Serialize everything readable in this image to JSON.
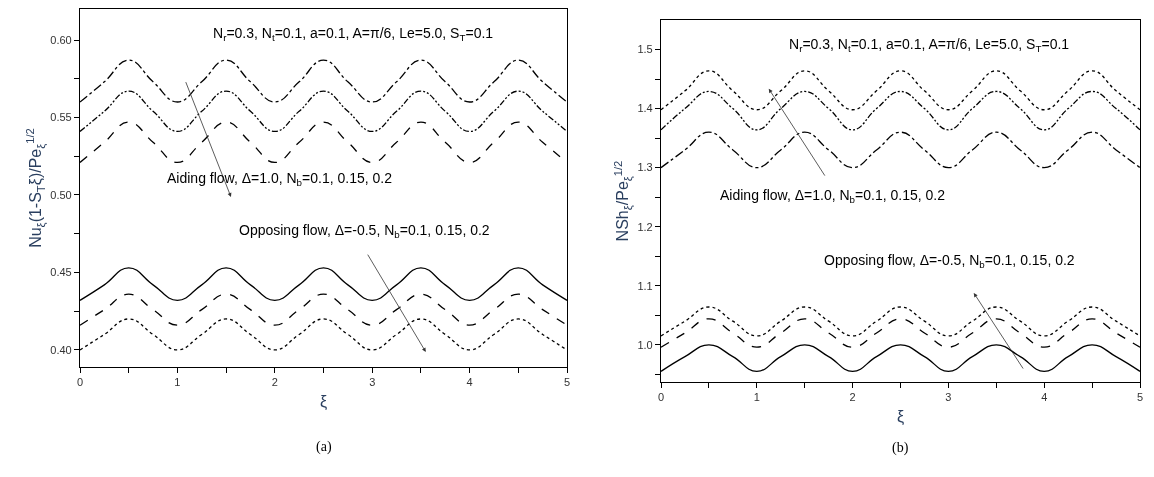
{
  "chart_data": [
    {
      "type": "line",
      "xlabel": "ξ",
      "ylabel": "Nu$_{ξ}$(1-S$_{T}$ξ)/Pe$_{ξ}$$^{1/2}$",
      "x": [
        0,
        0.25,
        0.5,
        0.75,
        1,
        1.25,
        1.5,
        1.75,
        2,
        2.25,
        2.5,
        2.75,
        3,
        3.25,
        3.5,
        3.75,
        4,
        4.25,
        4.5,
        4.75,
        5
      ],
      "xlim": [
        0,
        5
      ],
      "xticks": [
        0,
        {
          "value": 0.5,
          "label": null
        },
        1,
        {
          "value": 1.5,
          "label": null
        },
        2,
        {
          "value": 2.5,
          "label": null
        },
        3,
        {
          "value": 3.5,
          "label": null
        },
        4,
        {
          "value": 4.5,
          "label": null
        },
        5
      ],
      "ylim": [
        0.389,
        0.62
      ],
      "yticks": [
        {
          "value": 0.4,
          "label": "0.40"
        },
        {
          "value": 0.425,
          "label": null
        },
        0.45,
        {
          "value": 0.475,
          "label": null
        },
        {
          "value": 0.5,
          "label": "0.50"
        },
        {
          "value": 0.525,
          "label": null
        },
        0.55,
        {
          "value": 0.575,
          "label": null
        },
        {
          "value": 0.6,
          "label": "0.60"
        }
      ],
      "series": [
        {
          "color": "#000000",
          "line_style": "dashdot",
          "values": [
            0.56,
            0.573,
            0.587,
            0.573,
            0.56,
            0.573,
            0.587,
            0.573,
            0.56,
            0.573,
            0.587,
            0.573,
            0.56,
            0.573,
            0.587,
            0.573,
            0.56,
            0.573,
            0.587,
            0.573,
            0.56
          ]
        },
        {
          "color": "#000000",
          "line_style": "dashdotdot",
          "values": [
            0.541,
            0.554,
            0.567,
            0.554,
            0.541,
            0.554,
            0.567,
            0.554,
            0.541,
            0.554,
            0.567,
            0.554,
            0.541,
            0.554,
            0.567,
            0.554,
            0.541,
            0.554,
            0.567,
            0.554,
            0.541
          ]
        },
        {
          "color": "#000000",
          "line_style": "dashed",
          "values": [
            0.521,
            0.534,
            0.547,
            0.534,
            0.521,
            0.534,
            0.547,
            0.534,
            0.521,
            0.534,
            0.547,
            0.534,
            0.521,
            0.534,
            0.547,
            0.534,
            0.521,
            0.534,
            0.547,
            0.534,
            0.521
          ]
        },
        {
          "color": "#000000",
          "line_style": "solid",
          "values": [
            0.432,
            0.442,
            0.453,
            0.442,
            0.432,
            0.442,
            0.453,
            0.442,
            0.432,
            0.442,
            0.453,
            0.442,
            0.432,
            0.442,
            0.453,
            0.442,
            0.432,
            0.442,
            0.453,
            0.442,
            0.432
          ]
        },
        {
          "color": "#000000",
          "line_style": "dashed",
          "values": [
            0.416,
            0.426,
            0.436,
            0.426,
            0.416,
            0.426,
            0.436,
            0.426,
            0.416,
            0.426,
            0.436,
            0.426,
            0.416,
            0.426,
            0.436,
            0.426,
            0.416,
            0.426,
            0.436,
            0.426,
            0.416
          ]
        },
        {
          "color": "#000000",
          "line_style": "dotted",
          "values": [
            0.4,
            0.41,
            0.42,
            0.41,
            0.4,
            0.41,
            0.42,
            0.41,
            0.4,
            0.41,
            0.42,
            0.41,
            0.4,
            0.41,
            0.42,
            0.41,
            0.4,
            0.41,
            0.42,
            0.41,
            0.4
          ]
        }
      ],
      "annotations": [
        "N$_{r}$=0.3, N$_{t}$=0.1, a=0.1, A=π/6, Le=5.0, S$_{T}$=0.1",
        "Aiding flow, Δ=1.0, N$_{b}$=0.1, 0.15, 0.2",
        "Opposing flow, Δ=-0.5, N$_{b}$=0.1, 0.15, 0.2",
        "(a)"
      ]
    },
    {
      "type": "line",
      "xlabel": "ξ",
      "ylabel": "NSh$_{ξ}$/Pe$_{ξ}$$^{1/2}$",
      "x": [
        0,
        0.25,
        0.5,
        0.75,
        1,
        1.25,
        1.5,
        1.75,
        2,
        2.25,
        2.5,
        2.75,
        3,
        3.25,
        3.5,
        3.75,
        4,
        4.25,
        4.5,
        4.75,
        5
      ],
      "xlim": [
        0,
        5
      ],
      "xticks": [
        0,
        {
          "value": 0.5,
          "label": null
        },
        1,
        {
          "value": 1.5,
          "label": null
        },
        2,
        {
          "value": 2.5,
          "label": null
        },
        3,
        {
          "value": 3.5,
          "label": null
        },
        4,
        {
          "value": 4.5,
          "label": null
        },
        5
      ],
      "ylim": [
        0.937,
        1.55
      ],
      "yticks": [
        {
          "value": 0.95,
          "label": null
        },
        {
          "value": 1,
          "label": "1.0"
        },
        {
          "value": 1.05,
          "label": null
        },
        1.1,
        {
          "value": 1.15,
          "label": null
        },
        1.2,
        {
          "value": 1.25,
          "label": null
        },
        1.3,
        {
          "value": 1.35,
          "label": null
        },
        1.4,
        {
          "value": 1.45,
          "label": null
        },
        1.5
      ],
      "series": [
        {
          "color": "#000000",
          "line_style": "dotted",
          "values": [
            1.398,
            1.43,
            1.464,
            1.43,
            1.398,
            1.43,
            1.464,
            1.43,
            1.398,
            1.43,
            1.464,
            1.43,
            1.398,
            1.43,
            1.464,
            1.43,
            1.398,
            1.43,
            1.464,
            1.43,
            1.398
          ]
        },
        {
          "color": "#000000",
          "line_style": "dashdotdot",
          "values": [
            1.364,
            1.4,
            1.429,
            1.4,
            1.364,
            1.4,
            1.429,
            1.4,
            1.364,
            1.4,
            1.429,
            1.4,
            1.364,
            1.4,
            1.429,
            1.4,
            1.364,
            1.4,
            1.429,
            1.4,
            1.364
          ]
        },
        {
          "color": "#000000",
          "line_style": "dashdot",
          "values": [
            1.3,
            1.33,
            1.36,
            1.33,
            1.3,
            1.33,
            1.36,
            1.33,
            1.3,
            1.33,
            1.36,
            1.33,
            1.3,
            1.33,
            1.36,
            1.33,
            1.3,
            1.33,
            1.36,
            1.33,
            1.3
          ]
        },
        {
          "color": "#000000",
          "line_style": "dotted",
          "values": [
            1.015,
            1.04,
            1.064,
            1.04,
            1.015,
            1.04,
            1.064,
            1.04,
            1.015,
            1.04,
            1.064,
            1.04,
            1.015,
            1.04,
            1.064,
            1.04,
            1.015,
            1.04,
            1.064,
            1.04,
            1.015
          ]
        },
        {
          "color": "#000000",
          "line_style": "dashed",
          "values": [
            0.996,
            1.02,
            1.044,
            1.02,
            0.996,
            1.02,
            1.044,
            1.02,
            0.996,
            1.02,
            1.044,
            1.02,
            0.996,
            1.02,
            1.044,
            1.02,
            0.996,
            1.02,
            1.044,
            1.02,
            0.996
          ]
        },
        {
          "color": "#000000",
          "line_style": "solid",
          "values": [
            0.955,
            0.98,
            1.0,
            0.98,
            0.955,
            0.98,
            1.0,
            0.98,
            0.955,
            0.98,
            1.0,
            0.98,
            0.955,
            0.98,
            1.0,
            0.98,
            0.955,
            0.98,
            1.0,
            0.98,
            0.955
          ]
        }
      ],
      "annotations": [
        "N$_{r}$=0.3, N$_{t}$=0.1, a=0.1, A=π/6, Le=5.0, S$_{T}$=0.1",
        "Aiding flow, Δ=1.0, N$_{b}$=0.1, 0.15, 0.2",
        "Opposing flow, Δ=-0.5, N$_{b}$=0.1, 0.15, 0.2",
        "(b)"
      ]
    }
  ]
}
